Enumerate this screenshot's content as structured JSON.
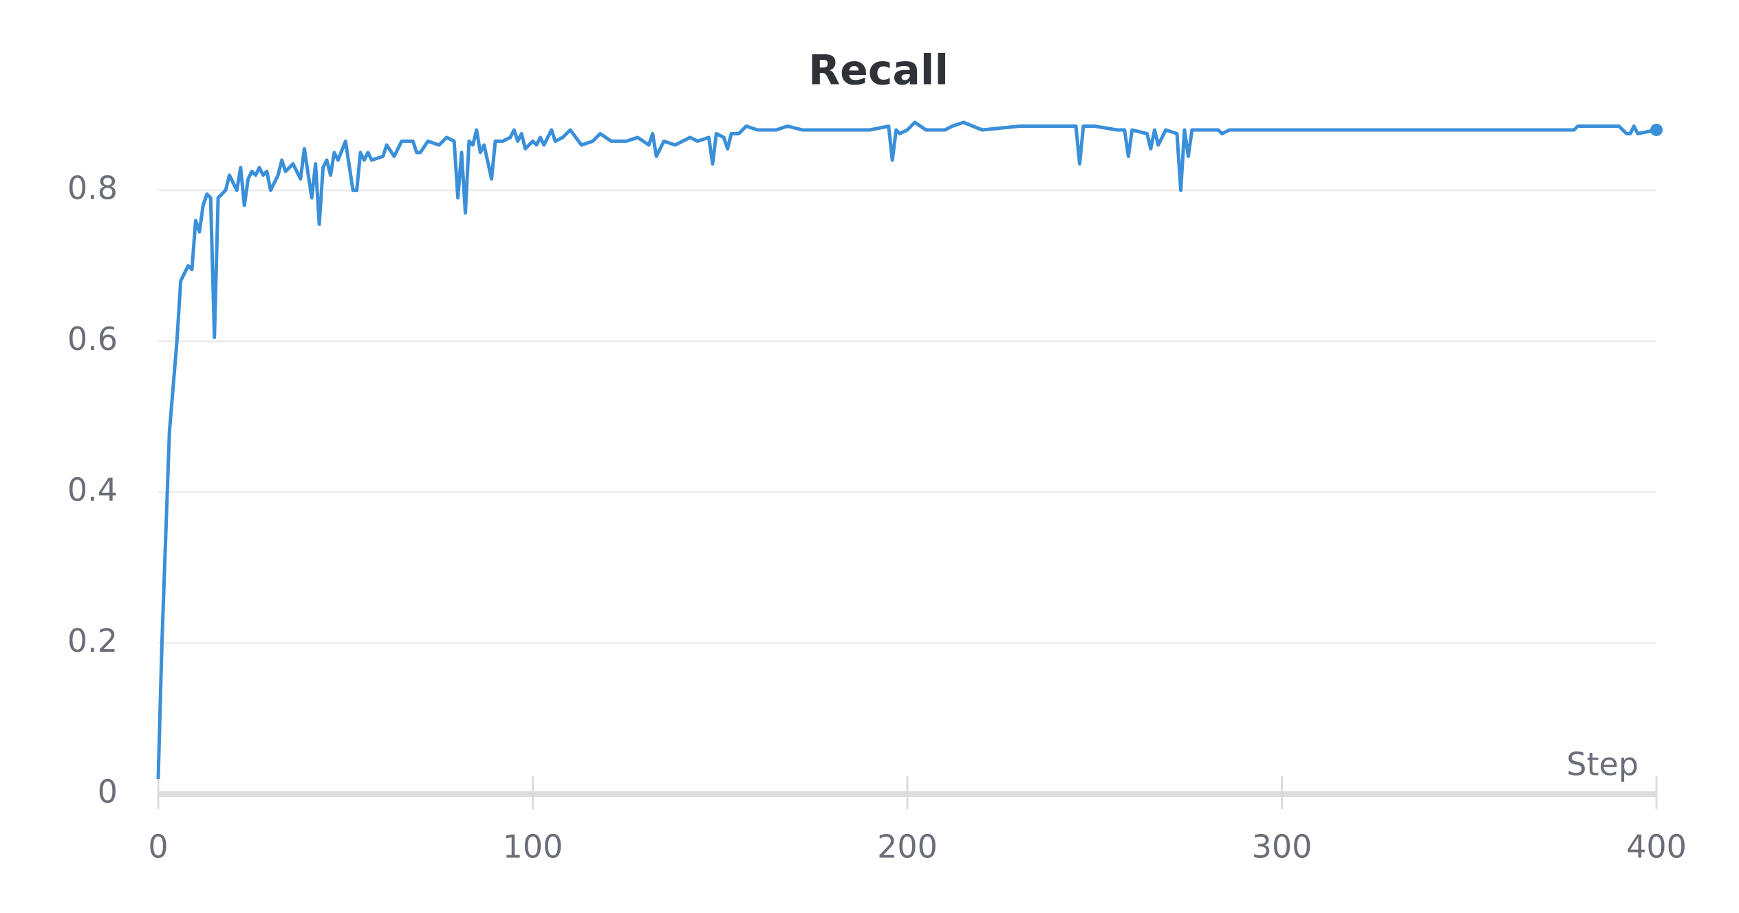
{
  "chart_data": {
    "type": "line",
    "title": "Recall",
    "x_label": "Step",
    "x": [
      0,
      1,
      3,
      5,
      6,
      7,
      8,
      9,
      10,
      11,
      12,
      13,
      14,
      15,
      16,
      18,
      19,
      21,
      22,
      23,
      24,
      25,
      26,
      27,
      28,
      29,
      30,
      32,
      33,
      34,
      36,
      38,
      39,
      41,
      42,
      43,
      44,
      45,
      46,
      47,
      48,
      50,
      52,
      53,
      54,
      55,
      56,
      57,
      60,
      61,
      63,
      65,
      68,
      69,
      70,
      72,
      75,
      77,
      79,
      80,
      81,
      82,
      83,
      84,
      85,
      86,
      87,
      89,
      90,
      92,
      94,
      95,
      96,
      97,
      98,
      100,
      101,
      102,
      103,
      105,
      106,
      108,
      110,
      113,
      116,
      118,
      121,
      125,
      128,
      131,
      132,
      133,
      135,
      138,
      142,
      144,
      147,
      148,
      149,
      151,
      152,
      153,
      155,
      157,
      160,
      165,
      168,
      172,
      180,
      190,
      195,
      196,
      197,
      198,
      200,
      202,
      205,
      210,
      212,
      215,
      220,
      230,
      245,
      246,
      247,
      250,
      256,
      258,
      259,
      260,
      264,
      265,
      266,
      267,
      269,
      272,
      273,
      274,
      275,
      276,
      283,
      284,
      286,
      300,
      320,
      350,
      378,
      379,
      390,
      392,
      393,
      394,
      395,
      400
    ],
    "series": [
      {
        "name": "Recall",
        "color": "#3a8fd9",
        "values": [
          0.02,
          0.2,
          0.48,
          0.6,
          0.68,
          0.69,
          0.7,
          0.695,
          0.76,
          0.745,
          0.78,
          0.795,
          0.79,
          0.605,
          0.79,
          0.8,
          0.82,
          0.8,
          0.83,
          0.78,
          0.815,
          0.825,
          0.82,
          0.83,
          0.82,
          0.825,
          0.8,
          0.82,
          0.84,
          0.825,
          0.835,
          0.815,
          0.855,
          0.79,
          0.835,
          0.755,
          0.83,
          0.84,
          0.82,
          0.85,
          0.84,
          0.865,
          0.8,
          0.8,
          0.85,
          0.84,
          0.85,
          0.84,
          0.845,
          0.86,
          0.845,
          0.865,
          0.865,
          0.85,
          0.85,
          0.865,
          0.86,
          0.87,
          0.865,
          0.79,
          0.85,
          0.77,
          0.865,
          0.86,
          0.88,
          0.85,
          0.86,
          0.815,
          0.865,
          0.865,
          0.87,
          0.88,
          0.865,
          0.875,
          0.855,
          0.865,
          0.86,
          0.87,
          0.86,
          0.88,
          0.865,
          0.87,
          0.88,
          0.86,
          0.865,
          0.875,
          0.865,
          0.865,
          0.87,
          0.86,
          0.875,
          0.845,
          0.865,
          0.86,
          0.87,
          0.865,
          0.87,
          0.835,
          0.875,
          0.87,
          0.855,
          0.875,
          0.875,
          0.885,
          0.88,
          0.88,
          0.885,
          0.88,
          0.88,
          0.88,
          0.885,
          0.84,
          0.88,
          0.875,
          0.88,
          0.89,
          0.88,
          0.88,
          0.885,
          0.89,
          0.88,
          0.885,
          0.885,
          0.835,
          0.885,
          0.885,
          0.88,
          0.88,
          0.845,
          0.88,
          0.875,
          0.855,
          0.88,
          0.86,
          0.88,
          0.875,
          0.8,
          0.88,
          0.845,
          0.88,
          0.88,
          0.875,
          0.88,
          0.88,
          0.88,
          0.88,
          0.88,
          0.885,
          0.885,
          0.875,
          0.875,
          0.885,
          0.875,
          0.88
        ]
      }
    ],
    "xlim": [
      0,
      400
    ],
    "xticks": [
      0,
      100,
      200,
      300,
      400
    ],
    "ylim": [
      0,
      0.9
    ],
    "yticks": [
      0,
      0.2,
      0.4,
      0.6,
      0.8
    ],
    "grid": true
  }
}
